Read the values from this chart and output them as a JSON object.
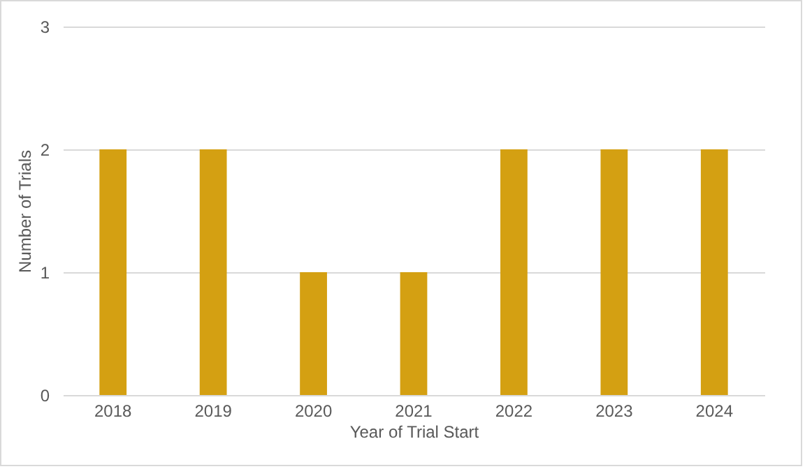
{
  "chart_data": {
    "type": "bar",
    "xlabel": "Year of Trial Start",
    "ylabel": "Number of Trials",
    "categories": [
      "2018",
      "2019",
      "2020",
      "2021",
      "2022",
      "2023",
      "2024"
    ],
    "values": [
      2,
      2,
      1,
      1,
      2,
      2,
      2
    ],
    "color": "#d4a012",
    "ylim": [
      0,
      3
    ],
    "yticks": [
      0,
      1,
      2,
      3
    ],
    "grid": "y"
  }
}
